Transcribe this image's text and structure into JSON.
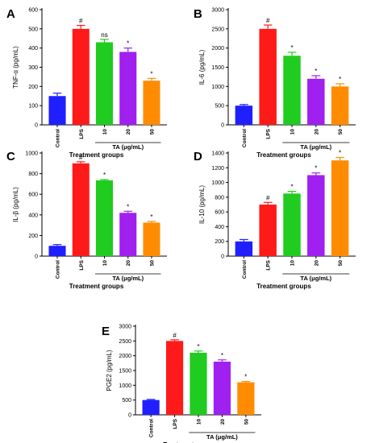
{
  "chart_data": [
    {
      "panel": "A",
      "type": "bar",
      "categories": [
        "Control",
        "LPS",
        "10",
        "20",
        "50"
      ],
      "values": [
        150,
        500,
        430,
        380,
        230
      ],
      "errors": [
        15,
        18,
        15,
        20,
        12
      ],
      "annotations": [
        "",
        "#",
        "ns",
        "*",
        "*"
      ],
      "ylabel": "TNF-α (pg/mL)",
      "xlabel": "Treatment groups",
      "group_label": "TA (μg/mL)",
      "ylim": [
        0,
        600
      ],
      "yticks": [
        "0",
        "100",
        "200",
        "300",
        "400",
        "500",
        "600"
      ]
    },
    {
      "panel": "B",
      "type": "bar",
      "categories": [
        "Control",
        "LPS",
        "10",
        "20",
        "50"
      ],
      "values": [
        500,
        2500,
        1800,
        1200,
        1000
      ],
      "errors": [
        30,
        100,
        90,
        80,
        70
      ],
      "annotations": [
        "",
        "#",
        "*",
        "*",
        "*"
      ],
      "ylabel": "IL-6 (pg/mL)",
      "xlabel": "Treatment groups",
      "group_label": "TA (μg/mL)",
      "ylim": [
        0,
        3000
      ],
      "yticks": [
        "0",
        "500",
        "1000",
        "1500",
        "2000",
        "2500",
        "3000"
      ]
    },
    {
      "panel": "C",
      "type": "bar",
      "categories": [
        "Control",
        "LPS",
        "10",
        "20",
        "50"
      ],
      "values": [
        100,
        900,
        735,
        420,
        325
      ],
      "errors": [
        12,
        15,
        8,
        15,
        12
      ],
      "annotations": [
        "",
        "#",
        "*",
        "*",
        "*"
      ],
      "ylabel": "IL-β (pg/mL)",
      "xlabel": "Treatment groups",
      "group_label": "TA (μg/mL)",
      "ylim": [
        0,
        1000
      ],
      "yticks": [
        "0",
        "200",
        "400",
        "600",
        "800",
        "1000"
      ]
    },
    {
      "panel": "D",
      "type": "bar",
      "categories": [
        "Control",
        "LPS",
        "10",
        "20",
        "50"
      ],
      "values": [
        200,
        700,
        850,
        1100,
        1300
      ],
      "errors": [
        25,
        30,
        30,
        30,
        40
      ],
      "annotations": [
        "",
        "#",
        "*",
        "*",
        "*"
      ],
      "ylabel": "IL-10 (pg/mL)",
      "xlabel": "Treatment groups",
      "group_label": "TA (μg/mL)",
      "ylim": [
        0,
        1400
      ],
      "yticks": [
        "0",
        "200",
        "400",
        "600",
        "800",
        "1000",
        "1200",
        "1400"
      ]
    },
    {
      "panel": "E",
      "type": "bar",
      "categories": [
        "Control",
        "LPS",
        "10",
        "20",
        "50"
      ],
      "values": [
        500,
        2500,
        2100,
        1800,
        1100
      ],
      "errors": [
        20,
        40,
        60,
        60,
        30
      ],
      "annotations": [
        "",
        "#",
        "*",
        "*",
        "*"
      ],
      "ylabel": "PGE2 (pg/mL)",
      "xlabel": "Treatment groups",
      "group_label": "TA (μg/mL)",
      "ylim": [
        0,
        3000
      ],
      "yticks": [
        "0",
        "500",
        "1000",
        "1500",
        "2000",
        "2500",
        "3000"
      ]
    }
  ],
  "colors": {
    "bars": [
      "#1f1fff",
      "#ff1a1a",
      "#1fcc1f",
      "#a020f0",
      "#ff8c00"
    ],
    "axis": "#000000"
  }
}
